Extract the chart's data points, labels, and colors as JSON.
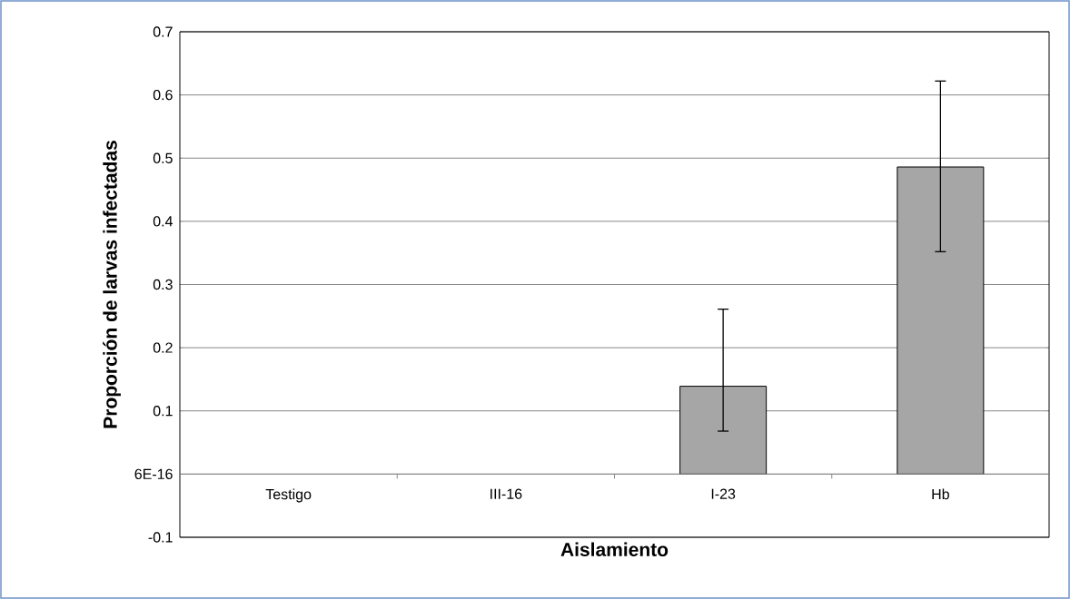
{
  "chart_data": {
    "type": "bar",
    "xlabel": "Aislamiento",
    "ylabel": "Proporción de larvas infectadas",
    "categories": [
      "Testigo",
      "III-16",
      "I-23",
      "Hb"
    ],
    "values": [
      0,
      0,
      0.139,
      0.486
    ],
    "errors": [
      null,
      null,
      [
        0.068,
        0.261
      ],
      [
        0.352,
        0.622
      ]
    ],
    "color": "#a6a6a6",
    "ylim": [
      -0.1,
      0.7
    ],
    "yticks": [
      -0.1,
      {
        "value": 0,
        "label": "6E-16"
      },
      0.1,
      0.2,
      0.3,
      0.4,
      0.5,
      0.6,
      0.7
    ],
    "grid": "y"
  }
}
